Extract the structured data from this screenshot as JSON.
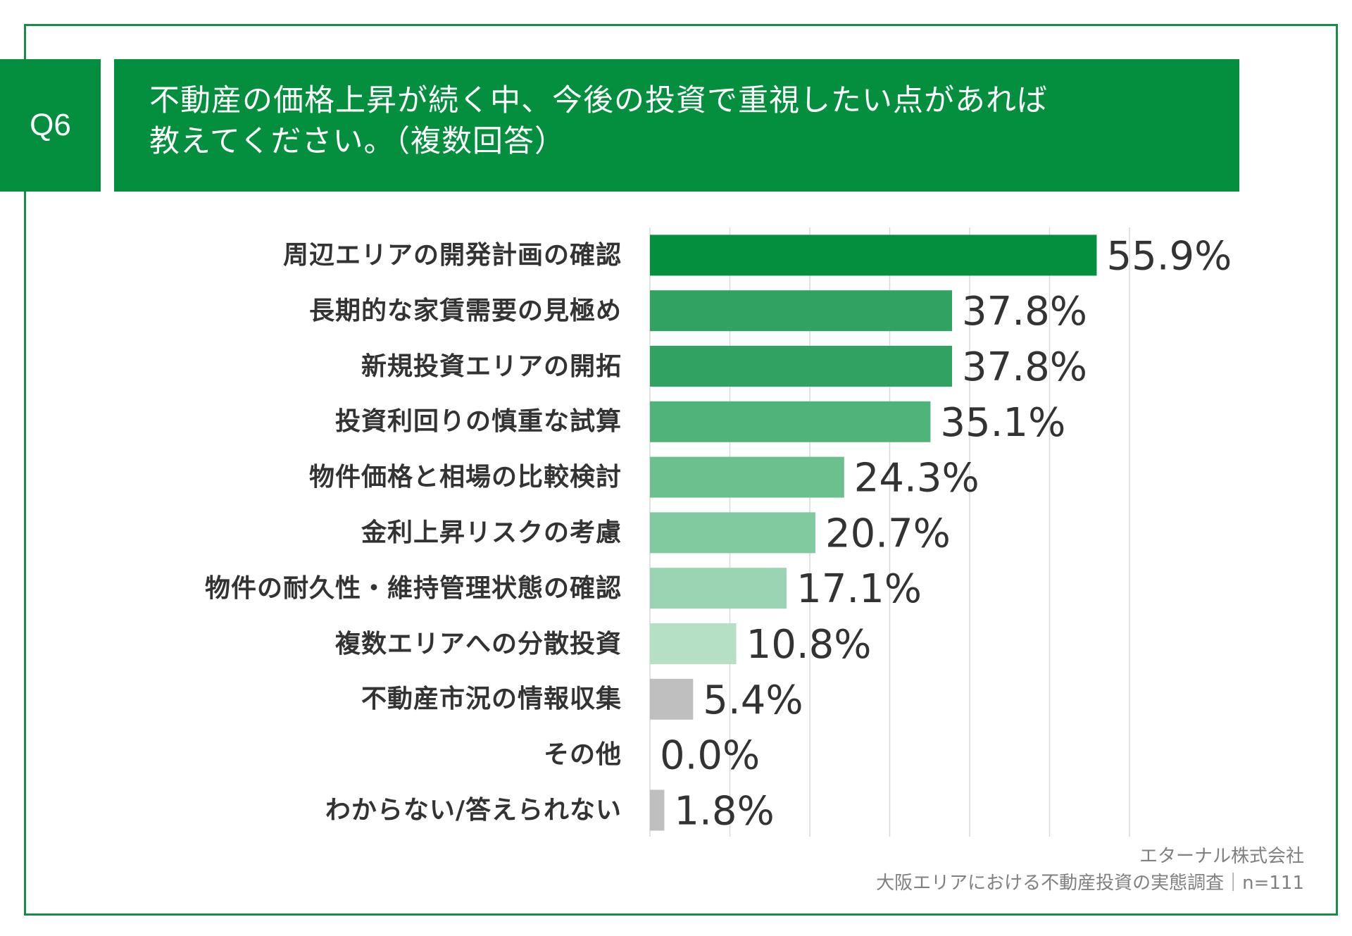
{
  "header": {
    "q_label": "Q6",
    "title_line1": "不動産の価格上昇が続く中、今後の投資で重視したい点があれば",
    "title_line2": "教えてください。（複数回答）"
  },
  "colors": {
    "brand": "#038f3e",
    "frame": "#1a8c45",
    "grid": "#d9d9d9",
    "text": "#333333"
  },
  "chart_data": {
    "type": "bar",
    "orientation": "horizontal",
    "categories": [
      "周辺エリアの開発計画の確認",
      "長期的な家賃需要の見極め",
      "新規投資エリアの開拓",
      "投資利回りの慎重な試算",
      "物件価格と相場の比較検討",
      "金利上昇リスクの考慮",
      "物件の耐久性・維持管理状態の確認",
      "複数エリアへの分散投資",
      "不動産市況の情報収集",
      "その他",
      "わからない/答えられない"
    ],
    "values": [
      55.9,
      37.8,
      37.8,
      35.1,
      24.3,
      20.7,
      17.1,
      10.8,
      5.4,
      0.0,
      1.8
    ],
    "value_labels": [
      "55.9%",
      "37.8%",
      "37.8%",
      "35.1%",
      "24.3%",
      "20.7%",
      "17.1%",
      "10.8%",
      "5.4%",
      "0.0%",
      "1.8%"
    ],
    "bar_colors": [
      "#038f3e",
      "#31a261",
      "#31a261",
      "#4fb37a",
      "#6cc08e",
      "#81caa0",
      "#9ad4b2",
      "#b5e0c6",
      "#bfbfbf",
      "#bfbfbf",
      "#bfbfbf"
    ],
    "xlim": [
      0,
      60
    ],
    "grid": true,
    "legend": "none"
  },
  "footer": {
    "company": "エターナル株式会社",
    "survey": "大阪エリアにおける不動産投資の実態調査｜n=111"
  }
}
